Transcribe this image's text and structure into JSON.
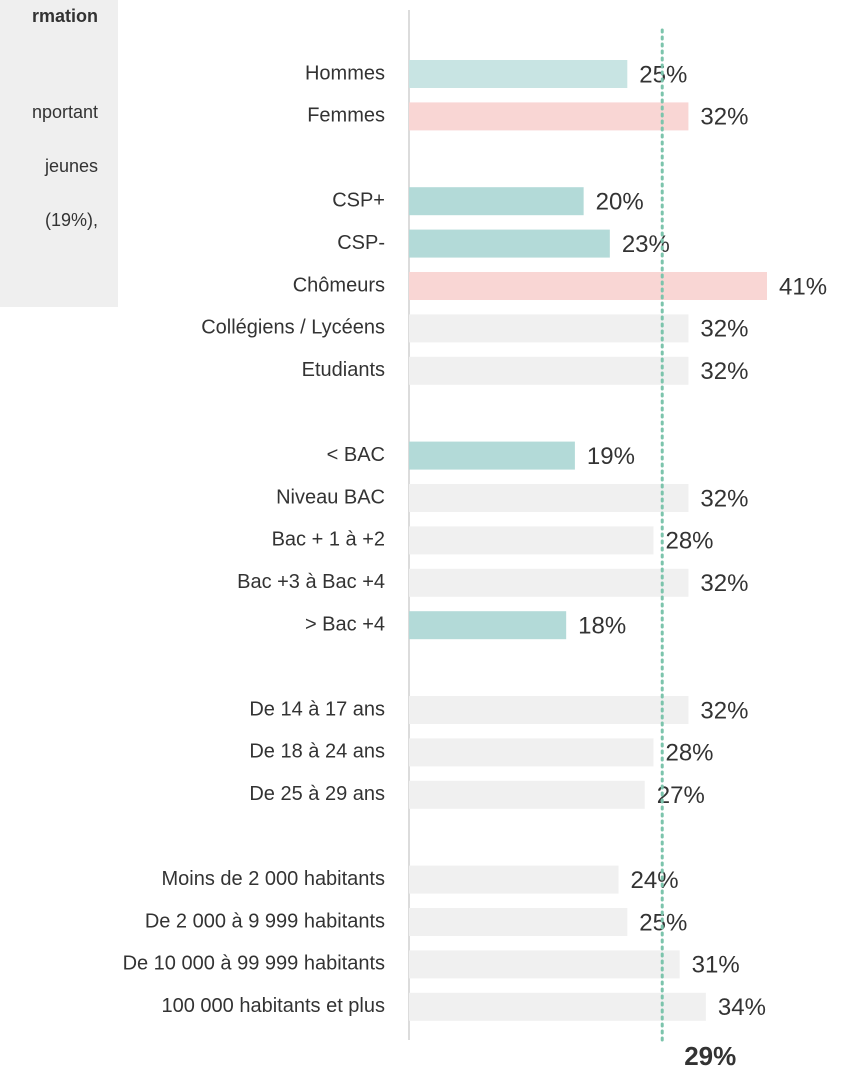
{
  "side_note": {
    "lines": [
      "rmation",
      "nportant",
      "jeunes",
      "(19%),"
    ]
  },
  "chart_data": {
    "type": "hbar",
    "categories": [
      "Hommes",
      "Femmes",
      null,
      "CSP+",
      "CSP-",
      "Chômeurs",
      "Collégiens / Lycéens",
      "Etudiants",
      null,
      "< BAC",
      "Niveau BAC",
      "Bac + 1 à +2",
      "Bac +3 à Bac +4",
      "> Bac +4",
      null,
      "De 14 à 17 ans",
      "De 18 à 24 ans",
      "De 25 à 29 ans",
      null,
      "Moins de 2 000 habitants",
      "De 2 000  à 9 999 habitants",
      "De 10 000 à 99 999 habitants",
      "100 000 habitants et plus"
    ],
    "values": [
      25,
      32,
      null,
      20,
      23,
      41,
      32,
      32,
      null,
      19,
      32,
      28,
      32,
      18,
      null,
      32,
      28,
      27,
      null,
      24,
      25,
      31,
      34
    ],
    "value_labels": [
      "25%",
      "32%",
      null,
      "20%",
      "23%",
      "41%",
      "32%",
      "32%",
      null,
      "19%",
      "32%",
      "28%",
      "32%",
      "18%",
      null,
      "32%",
      "28%",
      "27%",
      null,
      "24%",
      "25%",
      "31%",
      "34%"
    ],
    "colors": [
      "#c8e4e3",
      "#f9d6d4",
      null,
      "#b3dad8",
      "#b3dad8",
      "#f9d6d4",
      "#f0f0f0",
      "#f0f0f0",
      null,
      "#b3dad8",
      "#f0f0f0",
      "#f0f0f0",
      "#f0f0f0",
      "#b3dad8",
      null,
      "#f0f0f0",
      "#f0f0f0",
      "#f0f0f0",
      null,
      "#f0f0f0",
      "#f0f0f0",
      "#f0f0f0",
      "#f0f0f0"
    ],
    "xlim": [
      0,
      41
    ],
    "reference": {
      "value": 29,
      "label": "29%",
      "color": "#7cc4ac"
    }
  }
}
